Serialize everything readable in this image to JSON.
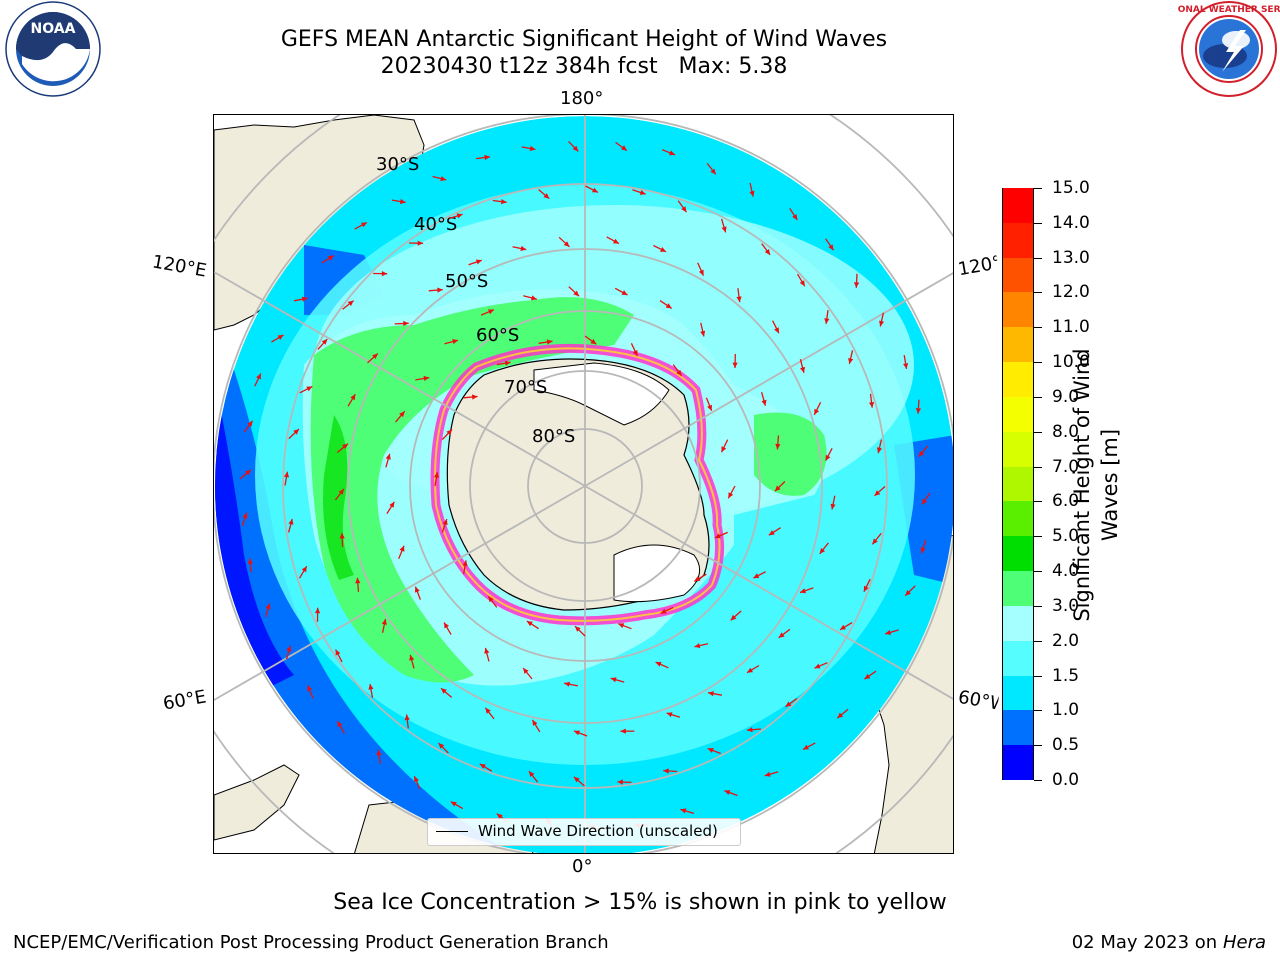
{
  "header": {
    "title_line1": "GEFS MEAN Antarctic Significant Height of Wind Waves",
    "title_line2": "20230430 t12z 384h fcst   Max: 5.38"
  },
  "logos": {
    "noaa": {
      "name": "noaa-logo",
      "text": "NOAA",
      "ring_text": "NATIONAL OCEANIC AND ATMOSPHERIC ADMINISTRATION · U.S. DEPARTMENT OF COMMERCE"
    },
    "nws": {
      "name": "nws-logo",
      "ring_text": "NATIONAL WEATHER SERVICE"
    }
  },
  "map": {
    "projection": "south-polar-stereographic",
    "longitude_labels": {
      "top": "180°",
      "bottom": "0°",
      "upper_left": "120°E",
      "lower_left": "60°E",
      "upper_right": "120°W",
      "lower_right": "60°W"
    },
    "latitude_labels": [
      "30°S",
      "40°S",
      "50°S",
      "60°S",
      "70°S",
      "80°S"
    ],
    "land_color": "#efecdc",
    "ice_shelf_color": "#ffffff",
    "sea_ice_colors": [
      "#ff33cc",
      "#ff66ff",
      "#ffcc33"
    ],
    "arrow_color": "#e81010",
    "grid_color": "#b8b8b8"
  },
  "legend": {
    "label": "Wind Wave Direction (unscaled)"
  },
  "colorbar": {
    "label": "Significant Height of Wind Waves [m]",
    "ticks": [
      "0.0",
      "0.5",
      "1.0",
      "1.5",
      "2.0",
      "3.0",
      "4.0",
      "5.0",
      "6.0",
      "7.0",
      "8.0",
      "9.0",
      "10.0",
      "11.0",
      "12.0",
      "13.0",
      "14.0",
      "15.0"
    ],
    "colors": [
      "#0000ff",
      "#0070ff",
      "#00e8ff",
      "#55fdff",
      "#a5fffe",
      "#4dfe76",
      "#00dd00",
      "#5aef00",
      "#aef700",
      "#d8ff00",
      "#f4ff00",
      "#ffec00",
      "#ffb800",
      "#ff8500",
      "#ff5200",
      "#ff2000",
      "#ff0000"
    ]
  },
  "caption": "Sea Ice Concentration > 15% is shown in pink to yellow",
  "footer": {
    "left": "NCEP/EMC/Verification Post Processing Product Generation Branch",
    "right_date": "02 May 2023 on",
    "right_host": "Hera"
  }
}
